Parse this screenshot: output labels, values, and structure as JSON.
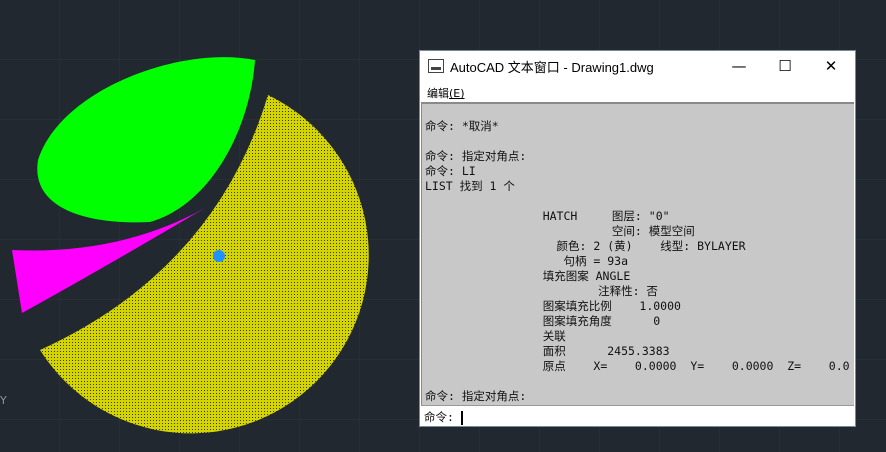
{
  "canvas": {
    "background": "#212830",
    "shape_colors": {
      "hatch": "#d4d400",
      "green": "#00ff00",
      "magenta": "#ff00ff",
      "grip": "#1e90ff"
    },
    "axis_label": "Y"
  },
  "window": {
    "title": "AutoCAD 文本窗口 - Drawing1.dwg",
    "minimize": "—",
    "maximize": "☐",
    "close": "✕",
    "menu": {
      "label": "编辑",
      "accel": "(E)"
    },
    "lines": [
      "",
      "命令: *取消*",
      "",
      "命令: 指定对角点:",
      "命令: LI",
      "LIST 找到 1 个",
      "",
      "                 HATCH     图层: \"0\"",
      "                           空间: 模型空间",
      "                   颜色: 2 (黄)    线型: BYLAYER",
      "                    句柄 = 93a",
      "                 填充图案 ANGLE",
      "                         注释性: 否",
      "                 图案填充比例    1.0000",
      "                 图案填充角度      0",
      "                 关联",
      "                 面积      2455.3383",
      "                 原点    X=    0.0000  Y=    0.0000  Z=    0.0",
      "",
      "命令: 指定对角点:"
    ],
    "prompt": "命令: "
  }
}
